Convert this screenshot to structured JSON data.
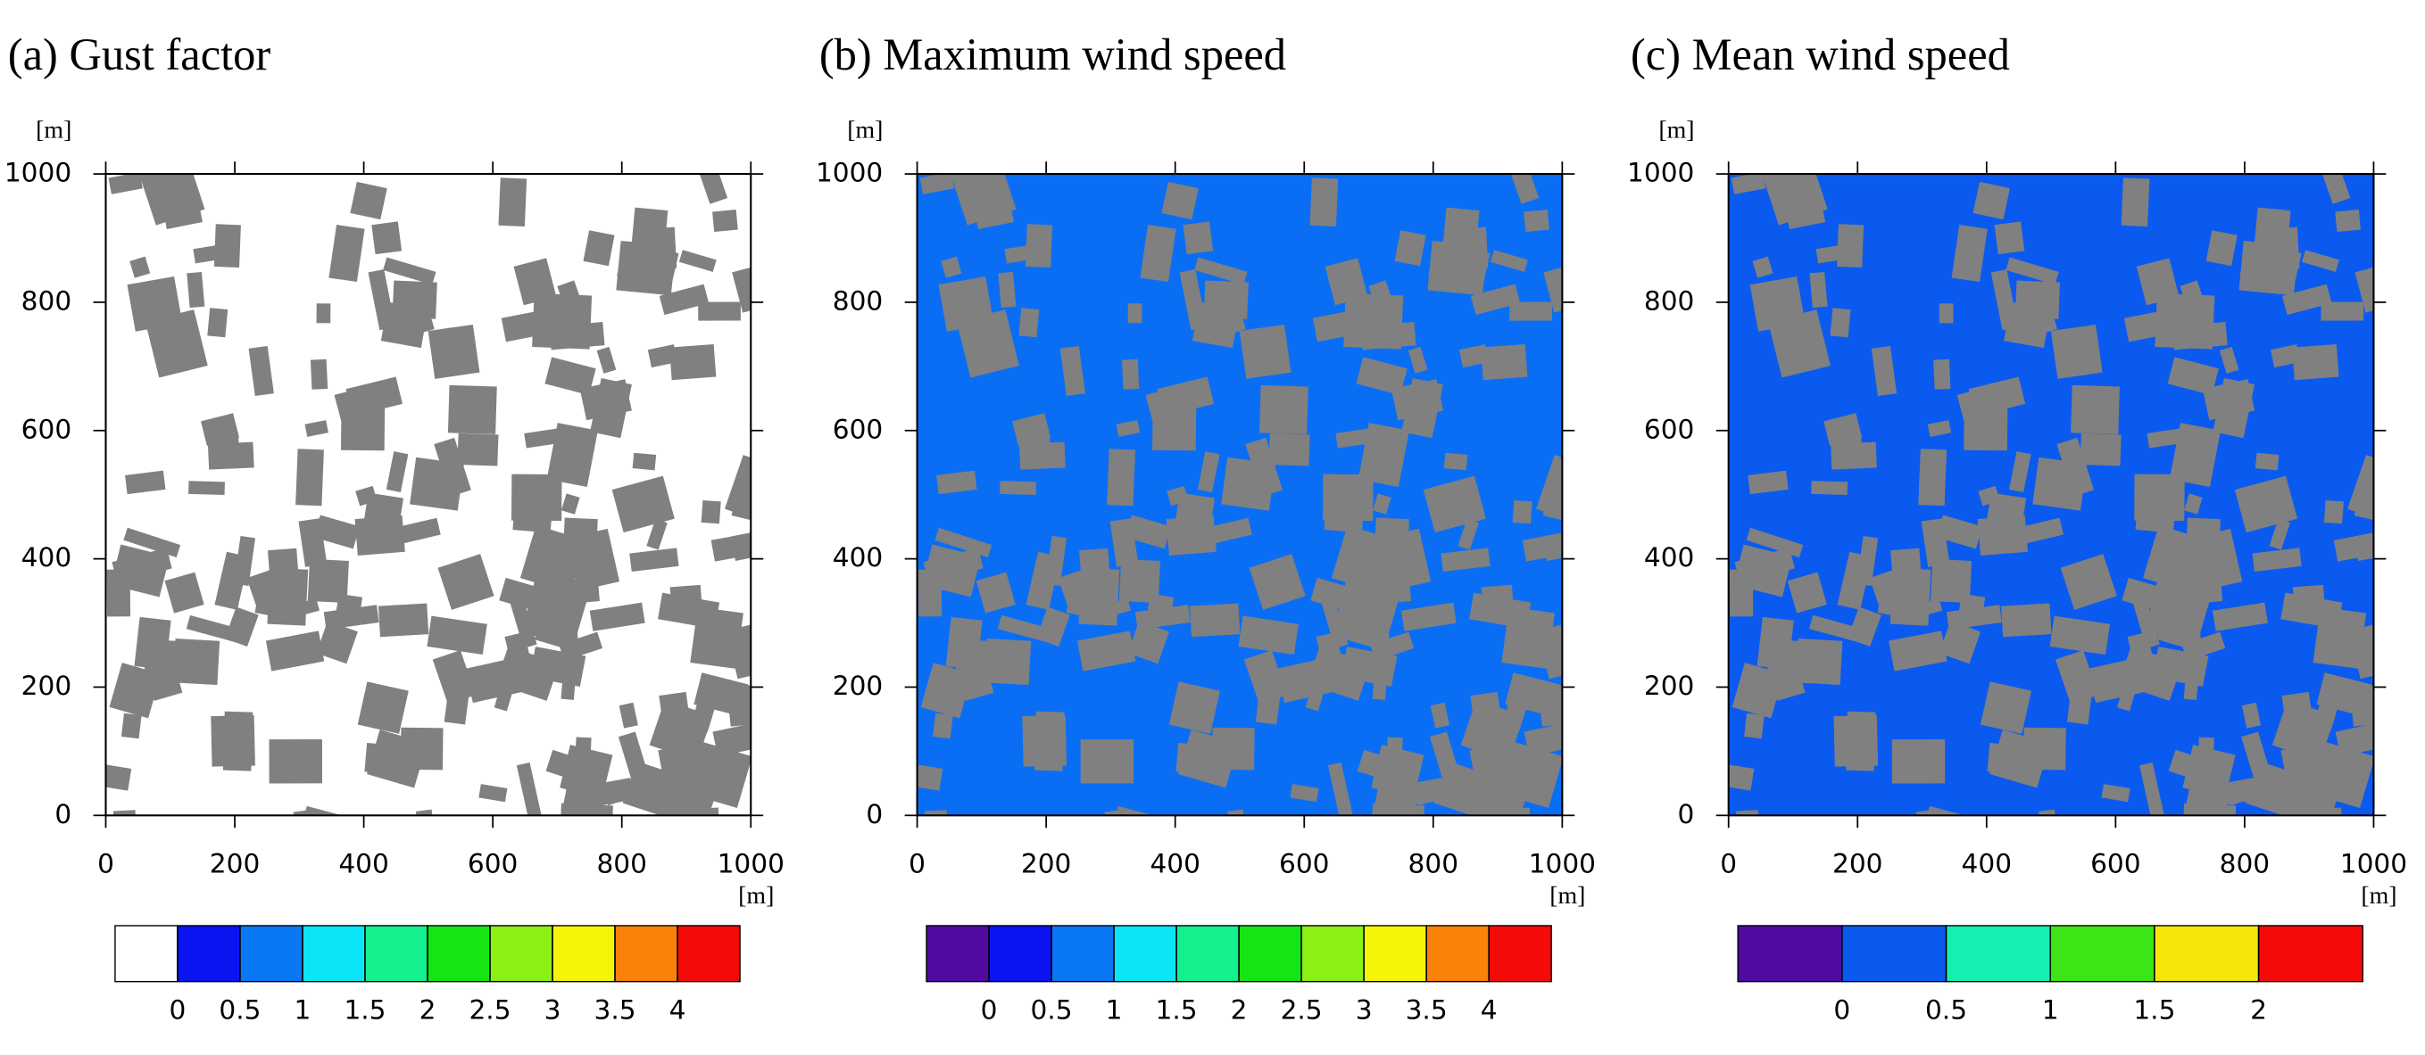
{
  "chart_data": [
    {
      "type": "heatmap",
      "title": "(a) Gust factor",
      "xlabel": "[m]",
      "ylabel": "[m]",
      "xlim": [
        0,
        1000
      ],
      "ylim": [
        0,
        1000
      ],
      "xticks": [
        0,
        200,
        400,
        600,
        800,
        1000
      ],
      "yticks": [
        0,
        200,
        400,
        600,
        800,
        1000
      ],
      "background": "#ffffff",
      "colorbar": {
        "levels": [
          0,
          0.5,
          1,
          1.5,
          2,
          2.5,
          3,
          3.5,
          4
        ],
        "colors": [
          "#ffffff",
          "#0a14f0",
          "#0a78f5",
          "#0ae6f5",
          "#14f08c",
          "#14e614",
          "#8cf014",
          "#f5f50a",
          "#fa820a",
          "#f50a0a"
        ]
      }
    },
    {
      "type": "heatmap",
      "title": "(b) Maximum wind speed",
      "xlabel": "[m]",
      "ylabel": "[m]",
      "xlim": [
        0,
        1000
      ],
      "ylim": [
        0,
        1000
      ],
      "xticks": [
        0,
        200,
        400,
        600,
        800,
        1000
      ],
      "yticks": [
        0,
        200,
        400,
        600,
        800,
        1000
      ],
      "background": "#0a6ef5",
      "colorbar": {
        "levels": [
          0,
          0.5,
          1,
          1.5,
          2,
          2.5,
          3,
          3.5,
          4
        ],
        "colors": [
          "#500aa0",
          "#0a14f0",
          "#0a78f5",
          "#0ae6f5",
          "#14f08c",
          "#14e614",
          "#8cf014",
          "#f5f50a",
          "#fa820a",
          "#f50a0a"
        ]
      }
    },
    {
      "type": "heatmap",
      "title": "(c) Mean wind speed",
      "xlabel": "[m]",
      "ylabel": "[m]",
      "xlim": [
        0,
        1000
      ],
      "ylim": [
        0,
        1000
      ],
      "xticks": [
        0,
        200,
        400,
        600,
        800,
        1000
      ],
      "yticks": [
        0,
        200,
        400,
        600,
        800,
        1000
      ],
      "background": "#0a5af0",
      "colorbar": {
        "levels": [
          0,
          0.5,
          1,
          1.5,
          2
        ],
        "colors": [
          "#500aa0",
          "#0a5af0",
          "#14f0b4",
          "#3ce614",
          "#f5e60a",
          "#f50a0a"
        ]
      }
    }
  ]
}
